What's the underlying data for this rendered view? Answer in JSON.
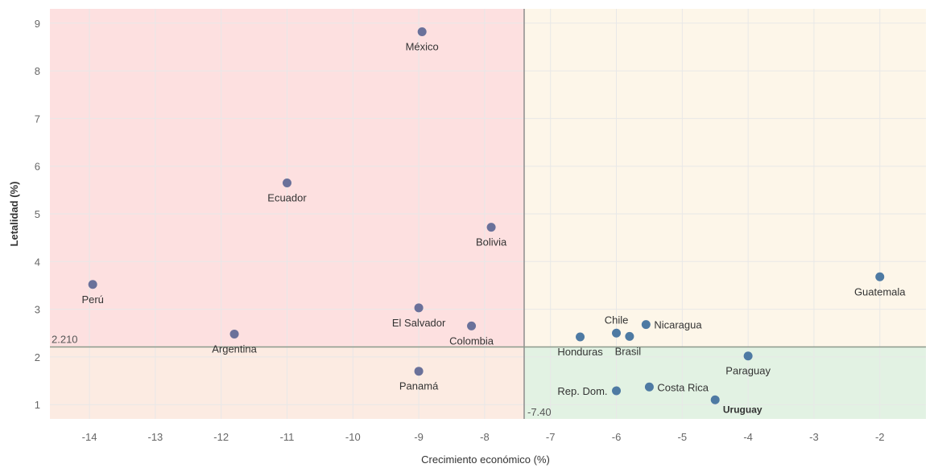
{
  "chart_data": {
    "type": "scatter",
    "xlabel": "Crecimiento económico (%)",
    "ylabel": "Letalidad (%)",
    "xlim": [
      -14.6,
      -1.3
    ],
    "ylim": [
      0.7,
      9.3
    ],
    "x_ticks": [
      -14,
      -13,
      -12,
      -11,
      -10,
      -9,
      -8,
      -7,
      -6,
      -5,
      -4,
      -3,
      -2
    ],
    "y_ticks": [
      1,
      2,
      3,
      4,
      5,
      6,
      7,
      8,
      9
    ],
    "reference_lines": {
      "x": -7.4,
      "x_label": "-7.40",
      "y": 2.21,
      "y_label": "2.210"
    },
    "quadrant_colors": {
      "top_left": "#fde0e0",
      "top_right": "#fdf6e9",
      "bottom_left": "#fcebe2",
      "bottom_right": "#e2f2e3"
    },
    "point_colors": {
      "left": "#6a719a",
      "right": "#4e7aa3"
    },
    "points": [
      {
        "label": "México",
        "x": -8.95,
        "y": 8.82,
        "label_pos": "below"
      },
      {
        "label": "Ecuador",
        "x": -11.0,
        "y": 5.65,
        "label_pos": "below"
      },
      {
        "label": "Bolivia",
        "x": -7.9,
        "y": 4.72,
        "label_pos": "below"
      },
      {
        "label": "Perú",
        "x": -13.95,
        "y": 3.52,
        "label_pos": "below"
      },
      {
        "label": "El Salvador",
        "x": -9.0,
        "y": 3.03,
        "label_pos": "below"
      },
      {
        "label": "Colombia",
        "x": -8.2,
        "y": 2.65,
        "label_pos": "below"
      },
      {
        "label": "Argentina",
        "x": -11.8,
        "y": 2.48,
        "label_pos": "below"
      },
      {
        "label": "Panamá",
        "x": -9.0,
        "y": 1.7,
        "label_pos": "below"
      },
      {
        "label": "Guatemala",
        "x": -2.0,
        "y": 3.68,
        "label_pos": "below"
      },
      {
        "label": "Nicaragua",
        "x": -5.55,
        "y": 2.68,
        "label_pos": "right"
      },
      {
        "label": "Chile",
        "x": -6.0,
        "y": 2.5,
        "label_pos": "above"
      },
      {
        "label": "Brasil",
        "x": -5.8,
        "y": 2.43,
        "label_pos": "below-left"
      },
      {
        "label": "Honduras",
        "x": -6.55,
        "y": 2.42,
        "label_pos": "below"
      },
      {
        "label": "Paraguay",
        "x": -4.0,
        "y": 2.02,
        "label_pos": "below"
      },
      {
        "label": "Costa Rica",
        "x": -5.5,
        "y": 1.37,
        "label_pos": "right"
      },
      {
        "label": "Rep. Dom.",
        "x": -6.0,
        "y": 1.29,
        "label_pos": "left"
      },
      {
        "label": "Uruguay",
        "x": -4.5,
        "y": 1.1,
        "label_pos": "below-bold"
      }
    ]
  }
}
